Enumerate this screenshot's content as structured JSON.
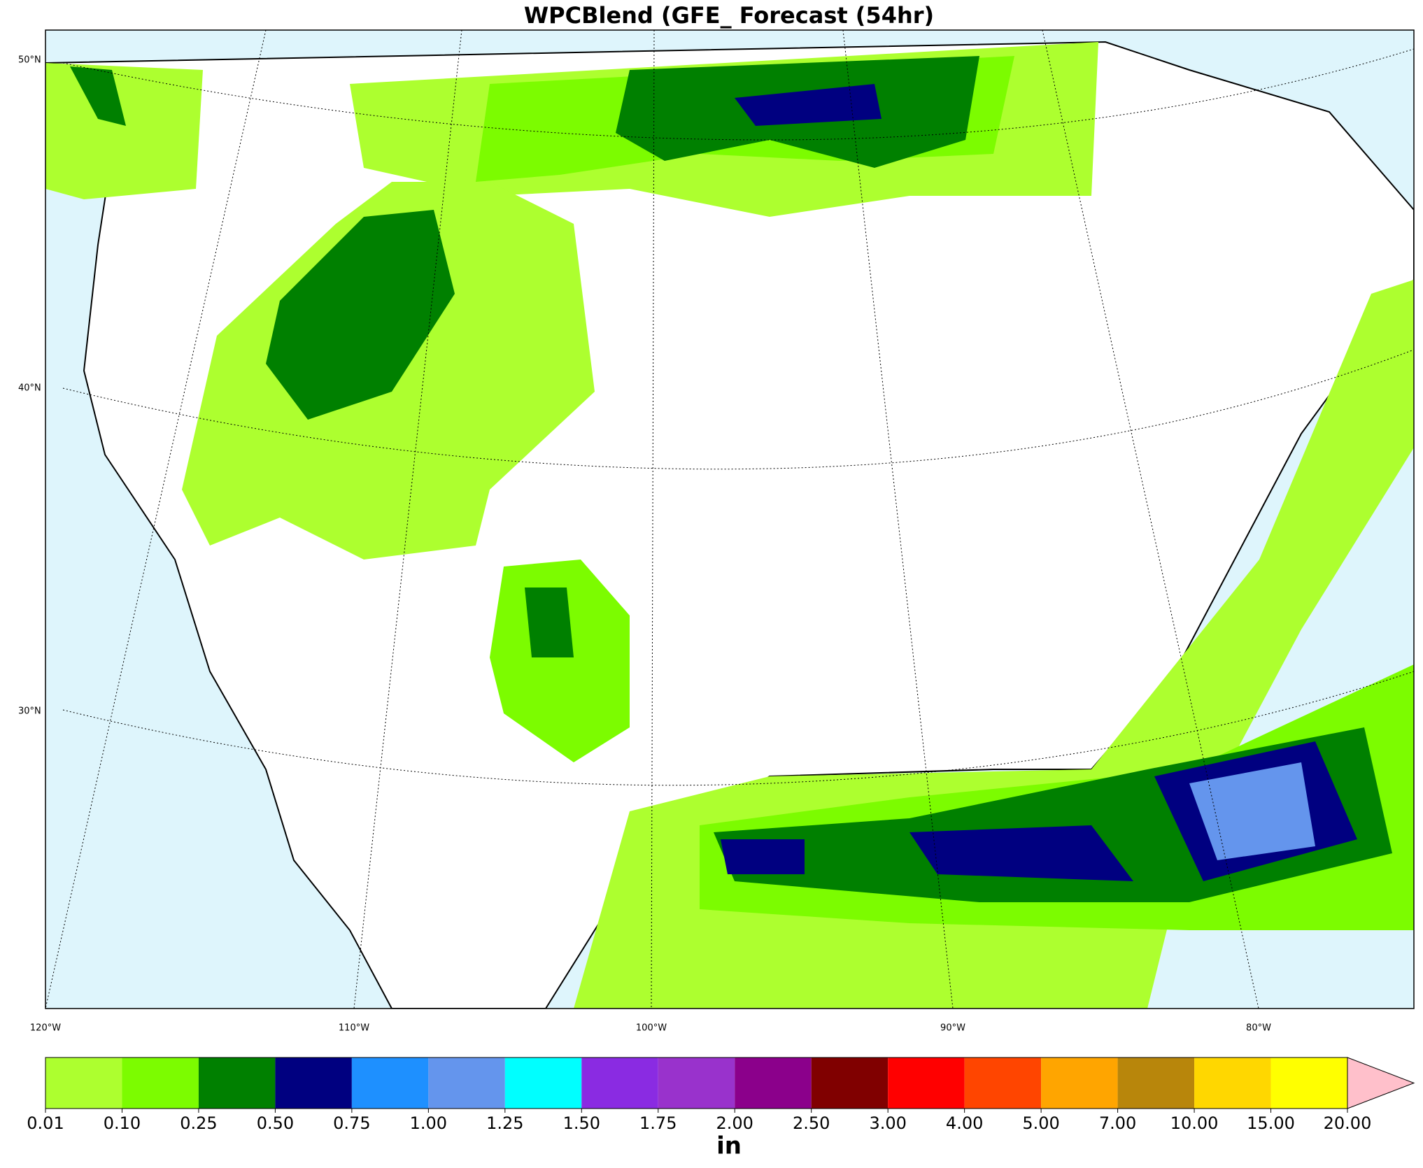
{
  "title": "WPCBlend (GFE_ Forecast (54hr)",
  "map": {
    "lat_labels": [
      "50°N",
      "40°N",
      "30°N"
    ],
    "lon_labels": [
      "120°W",
      "110°W",
      "100°W",
      "90°W",
      "80°W"
    ]
  },
  "colorbar": {
    "label": "in",
    "ticks": [
      0.01,
      {
        "value": 0.1,
        "label": "0.10"
      },
      0.25,
      {
        "value": 0.5,
        "label": "0.50"
      },
      0.75,
      {
        "value": 1,
        "label": "1.00"
      },
      1.25,
      {
        "value": 1.5,
        "label": "1.50"
      },
      1.75,
      {
        "value": 2,
        "label": "2.00"
      },
      {
        "value": 2.5,
        "label": "2.50"
      },
      {
        "value": 3,
        "label": "3.00"
      },
      {
        "value": 4,
        "label": "4.00"
      },
      {
        "value": 5,
        "label": "5.00"
      },
      {
        "value": 7,
        "label": "7.00"
      },
      {
        "value": 10,
        "label": "10.00"
      },
      {
        "value": 15,
        "label": "15.00"
      },
      {
        "value": 20,
        "label": "20.00"
      }
    ],
    "colors": [
      "#adff2f",
      "#7cfc00",
      "#008000",
      "#000080",
      "#1e90ff",
      "#6495ed",
      "#00ffff",
      "#8a2be2",
      "#9932cc",
      "#8b008b",
      "#800000",
      "#ff0000",
      "#ff4500",
      "#ffa500",
      "#b8860b",
      "#ffd700",
      "#ffff00"
    ],
    "extend_color": "#ffc0cb"
  }
}
